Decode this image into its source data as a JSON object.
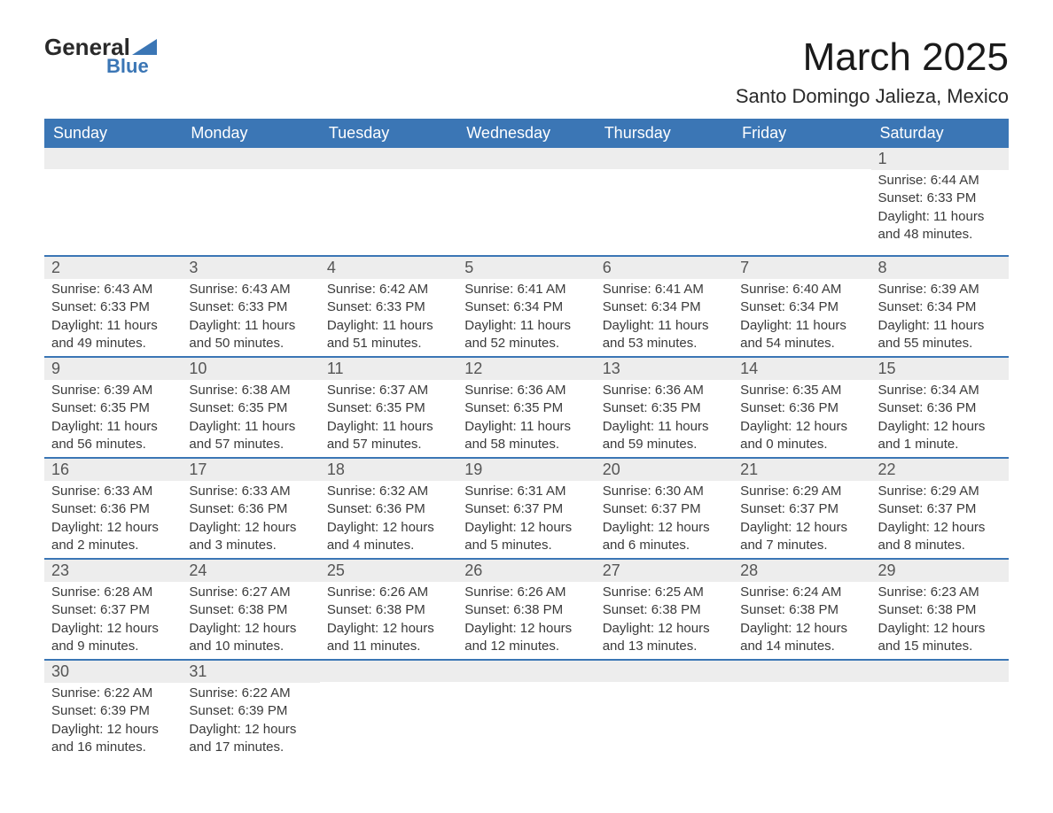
{
  "logo": {
    "text_main": "General",
    "text_sub": "Blue"
  },
  "title": "March 2025",
  "location": "Santo Domingo Jalieza, Mexico",
  "colors": {
    "header_bg": "#3b76b5",
    "header_text": "#ffffff",
    "daynum_bg": "#ededed",
    "border": "#3b76b5",
    "body_text": "#333333"
  },
  "day_headers": [
    "Sunday",
    "Monday",
    "Tuesday",
    "Wednesday",
    "Thursday",
    "Friday",
    "Saturday"
  ],
  "weeks": [
    [
      {
        "n": "",
        "sr": "",
        "ss": "",
        "dl": ""
      },
      {
        "n": "",
        "sr": "",
        "ss": "",
        "dl": ""
      },
      {
        "n": "",
        "sr": "",
        "ss": "",
        "dl": ""
      },
      {
        "n": "",
        "sr": "",
        "ss": "",
        "dl": ""
      },
      {
        "n": "",
        "sr": "",
        "ss": "",
        "dl": ""
      },
      {
        "n": "",
        "sr": "",
        "ss": "",
        "dl": ""
      },
      {
        "n": "1",
        "sr": "Sunrise: 6:44 AM",
        "ss": "Sunset: 6:33 PM",
        "dl": "Daylight: 11 hours and 48 minutes."
      }
    ],
    [
      {
        "n": "2",
        "sr": "Sunrise: 6:43 AM",
        "ss": "Sunset: 6:33 PM",
        "dl": "Daylight: 11 hours and 49 minutes."
      },
      {
        "n": "3",
        "sr": "Sunrise: 6:43 AM",
        "ss": "Sunset: 6:33 PM",
        "dl": "Daylight: 11 hours and 50 minutes."
      },
      {
        "n": "4",
        "sr": "Sunrise: 6:42 AM",
        "ss": "Sunset: 6:33 PM",
        "dl": "Daylight: 11 hours and 51 minutes."
      },
      {
        "n": "5",
        "sr": "Sunrise: 6:41 AM",
        "ss": "Sunset: 6:34 PM",
        "dl": "Daylight: 11 hours and 52 minutes."
      },
      {
        "n": "6",
        "sr": "Sunrise: 6:41 AM",
        "ss": "Sunset: 6:34 PM",
        "dl": "Daylight: 11 hours and 53 minutes."
      },
      {
        "n": "7",
        "sr": "Sunrise: 6:40 AM",
        "ss": "Sunset: 6:34 PM",
        "dl": "Daylight: 11 hours and 54 minutes."
      },
      {
        "n": "8",
        "sr": "Sunrise: 6:39 AM",
        "ss": "Sunset: 6:34 PM",
        "dl": "Daylight: 11 hours and 55 minutes."
      }
    ],
    [
      {
        "n": "9",
        "sr": "Sunrise: 6:39 AM",
        "ss": "Sunset: 6:35 PM",
        "dl": "Daylight: 11 hours and 56 minutes."
      },
      {
        "n": "10",
        "sr": "Sunrise: 6:38 AM",
        "ss": "Sunset: 6:35 PM",
        "dl": "Daylight: 11 hours and 57 minutes."
      },
      {
        "n": "11",
        "sr": "Sunrise: 6:37 AM",
        "ss": "Sunset: 6:35 PM",
        "dl": "Daylight: 11 hours and 57 minutes."
      },
      {
        "n": "12",
        "sr": "Sunrise: 6:36 AM",
        "ss": "Sunset: 6:35 PM",
        "dl": "Daylight: 11 hours and 58 minutes."
      },
      {
        "n": "13",
        "sr": "Sunrise: 6:36 AM",
        "ss": "Sunset: 6:35 PM",
        "dl": "Daylight: 11 hours and 59 minutes."
      },
      {
        "n": "14",
        "sr": "Sunrise: 6:35 AM",
        "ss": "Sunset: 6:36 PM",
        "dl": "Daylight: 12 hours and 0 minutes."
      },
      {
        "n": "15",
        "sr": "Sunrise: 6:34 AM",
        "ss": "Sunset: 6:36 PM",
        "dl": "Daylight: 12 hours and 1 minute."
      }
    ],
    [
      {
        "n": "16",
        "sr": "Sunrise: 6:33 AM",
        "ss": "Sunset: 6:36 PM",
        "dl": "Daylight: 12 hours and 2 minutes."
      },
      {
        "n": "17",
        "sr": "Sunrise: 6:33 AM",
        "ss": "Sunset: 6:36 PM",
        "dl": "Daylight: 12 hours and 3 minutes."
      },
      {
        "n": "18",
        "sr": "Sunrise: 6:32 AM",
        "ss": "Sunset: 6:36 PM",
        "dl": "Daylight: 12 hours and 4 minutes."
      },
      {
        "n": "19",
        "sr": "Sunrise: 6:31 AM",
        "ss": "Sunset: 6:37 PM",
        "dl": "Daylight: 12 hours and 5 minutes."
      },
      {
        "n": "20",
        "sr": "Sunrise: 6:30 AM",
        "ss": "Sunset: 6:37 PM",
        "dl": "Daylight: 12 hours and 6 minutes."
      },
      {
        "n": "21",
        "sr": "Sunrise: 6:29 AM",
        "ss": "Sunset: 6:37 PM",
        "dl": "Daylight: 12 hours and 7 minutes."
      },
      {
        "n": "22",
        "sr": "Sunrise: 6:29 AM",
        "ss": "Sunset: 6:37 PM",
        "dl": "Daylight: 12 hours and 8 minutes."
      }
    ],
    [
      {
        "n": "23",
        "sr": "Sunrise: 6:28 AM",
        "ss": "Sunset: 6:37 PM",
        "dl": "Daylight: 12 hours and 9 minutes."
      },
      {
        "n": "24",
        "sr": "Sunrise: 6:27 AM",
        "ss": "Sunset: 6:38 PM",
        "dl": "Daylight: 12 hours and 10 minutes."
      },
      {
        "n": "25",
        "sr": "Sunrise: 6:26 AM",
        "ss": "Sunset: 6:38 PM",
        "dl": "Daylight: 12 hours and 11 minutes."
      },
      {
        "n": "26",
        "sr": "Sunrise: 6:26 AM",
        "ss": "Sunset: 6:38 PM",
        "dl": "Daylight: 12 hours and 12 minutes."
      },
      {
        "n": "27",
        "sr": "Sunrise: 6:25 AM",
        "ss": "Sunset: 6:38 PM",
        "dl": "Daylight: 12 hours and 13 minutes."
      },
      {
        "n": "28",
        "sr": "Sunrise: 6:24 AM",
        "ss": "Sunset: 6:38 PM",
        "dl": "Daylight: 12 hours and 14 minutes."
      },
      {
        "n": "29",
        "sr": "Sunrise: 6:23 AM",
        "ss": "Sunset: 6:38 PM",
        "dl": "Daylight: 12 hours and 15 minutes."
      }
    ],
    [
      {
        "n": "30",
        "sr": "Sunrise: 6:22 AM",
        "ss": "Sunset: 6:39 PM",
        "dl": "Daylight: 12 hours and 16 minutes."
      },
      {
        "n": "31",
        "sr": "Sunrise: 6:22 AM",
        "ss": "Sunset: 6:39 PM",
        "dl": "Daylight: 12 hours and 17 minutes."
      },
      {
        "n": "",
        "sr": "",
        "ss": "",
        "dl": ""
      },
      {
        "n": "",
        "sr": "",
        "ss": "",
        "dl": ""
      },
      {
        "n": "",
        "sr": "",
        "ss": "",
        "dl": ""
      },
      {
        "n": "",
        "sr": "",
        "ss": "",
        "dl": ""
      },
      {
        "n": "",
        "sr": "",
        "ss": "",
        "dl": ""
      }
    ]
  ]
}
